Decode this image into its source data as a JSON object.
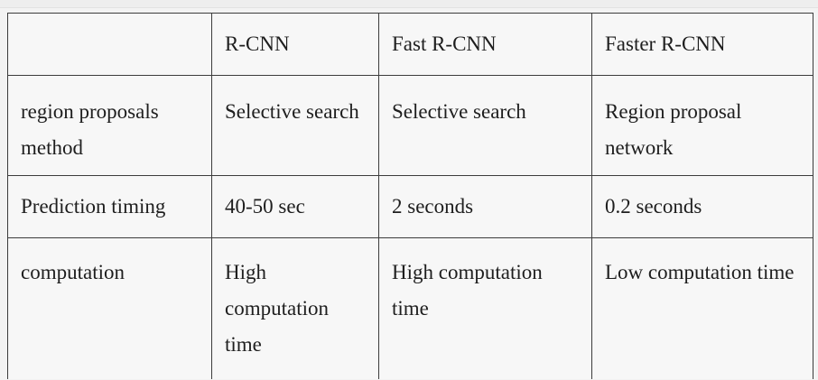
{
  "table": {
    "header": [
      "",
      "R-CNN",
      "Fast R-CNN",
      "Faster R-CNN"
    ],
    "rows": [
      [
        "region proposals method",
        "Selective search",
        "Selective search",
        "Region proposal network"
      ],
      [
        "Prediction timing",
        "40-50 sec",
        "2 seconds",
        "0.2 seconds"
      ],
      [
        "computation",
        "High computation time",
        "High computation time",
        "Low computation time"
      ]
    ]
  }
}
